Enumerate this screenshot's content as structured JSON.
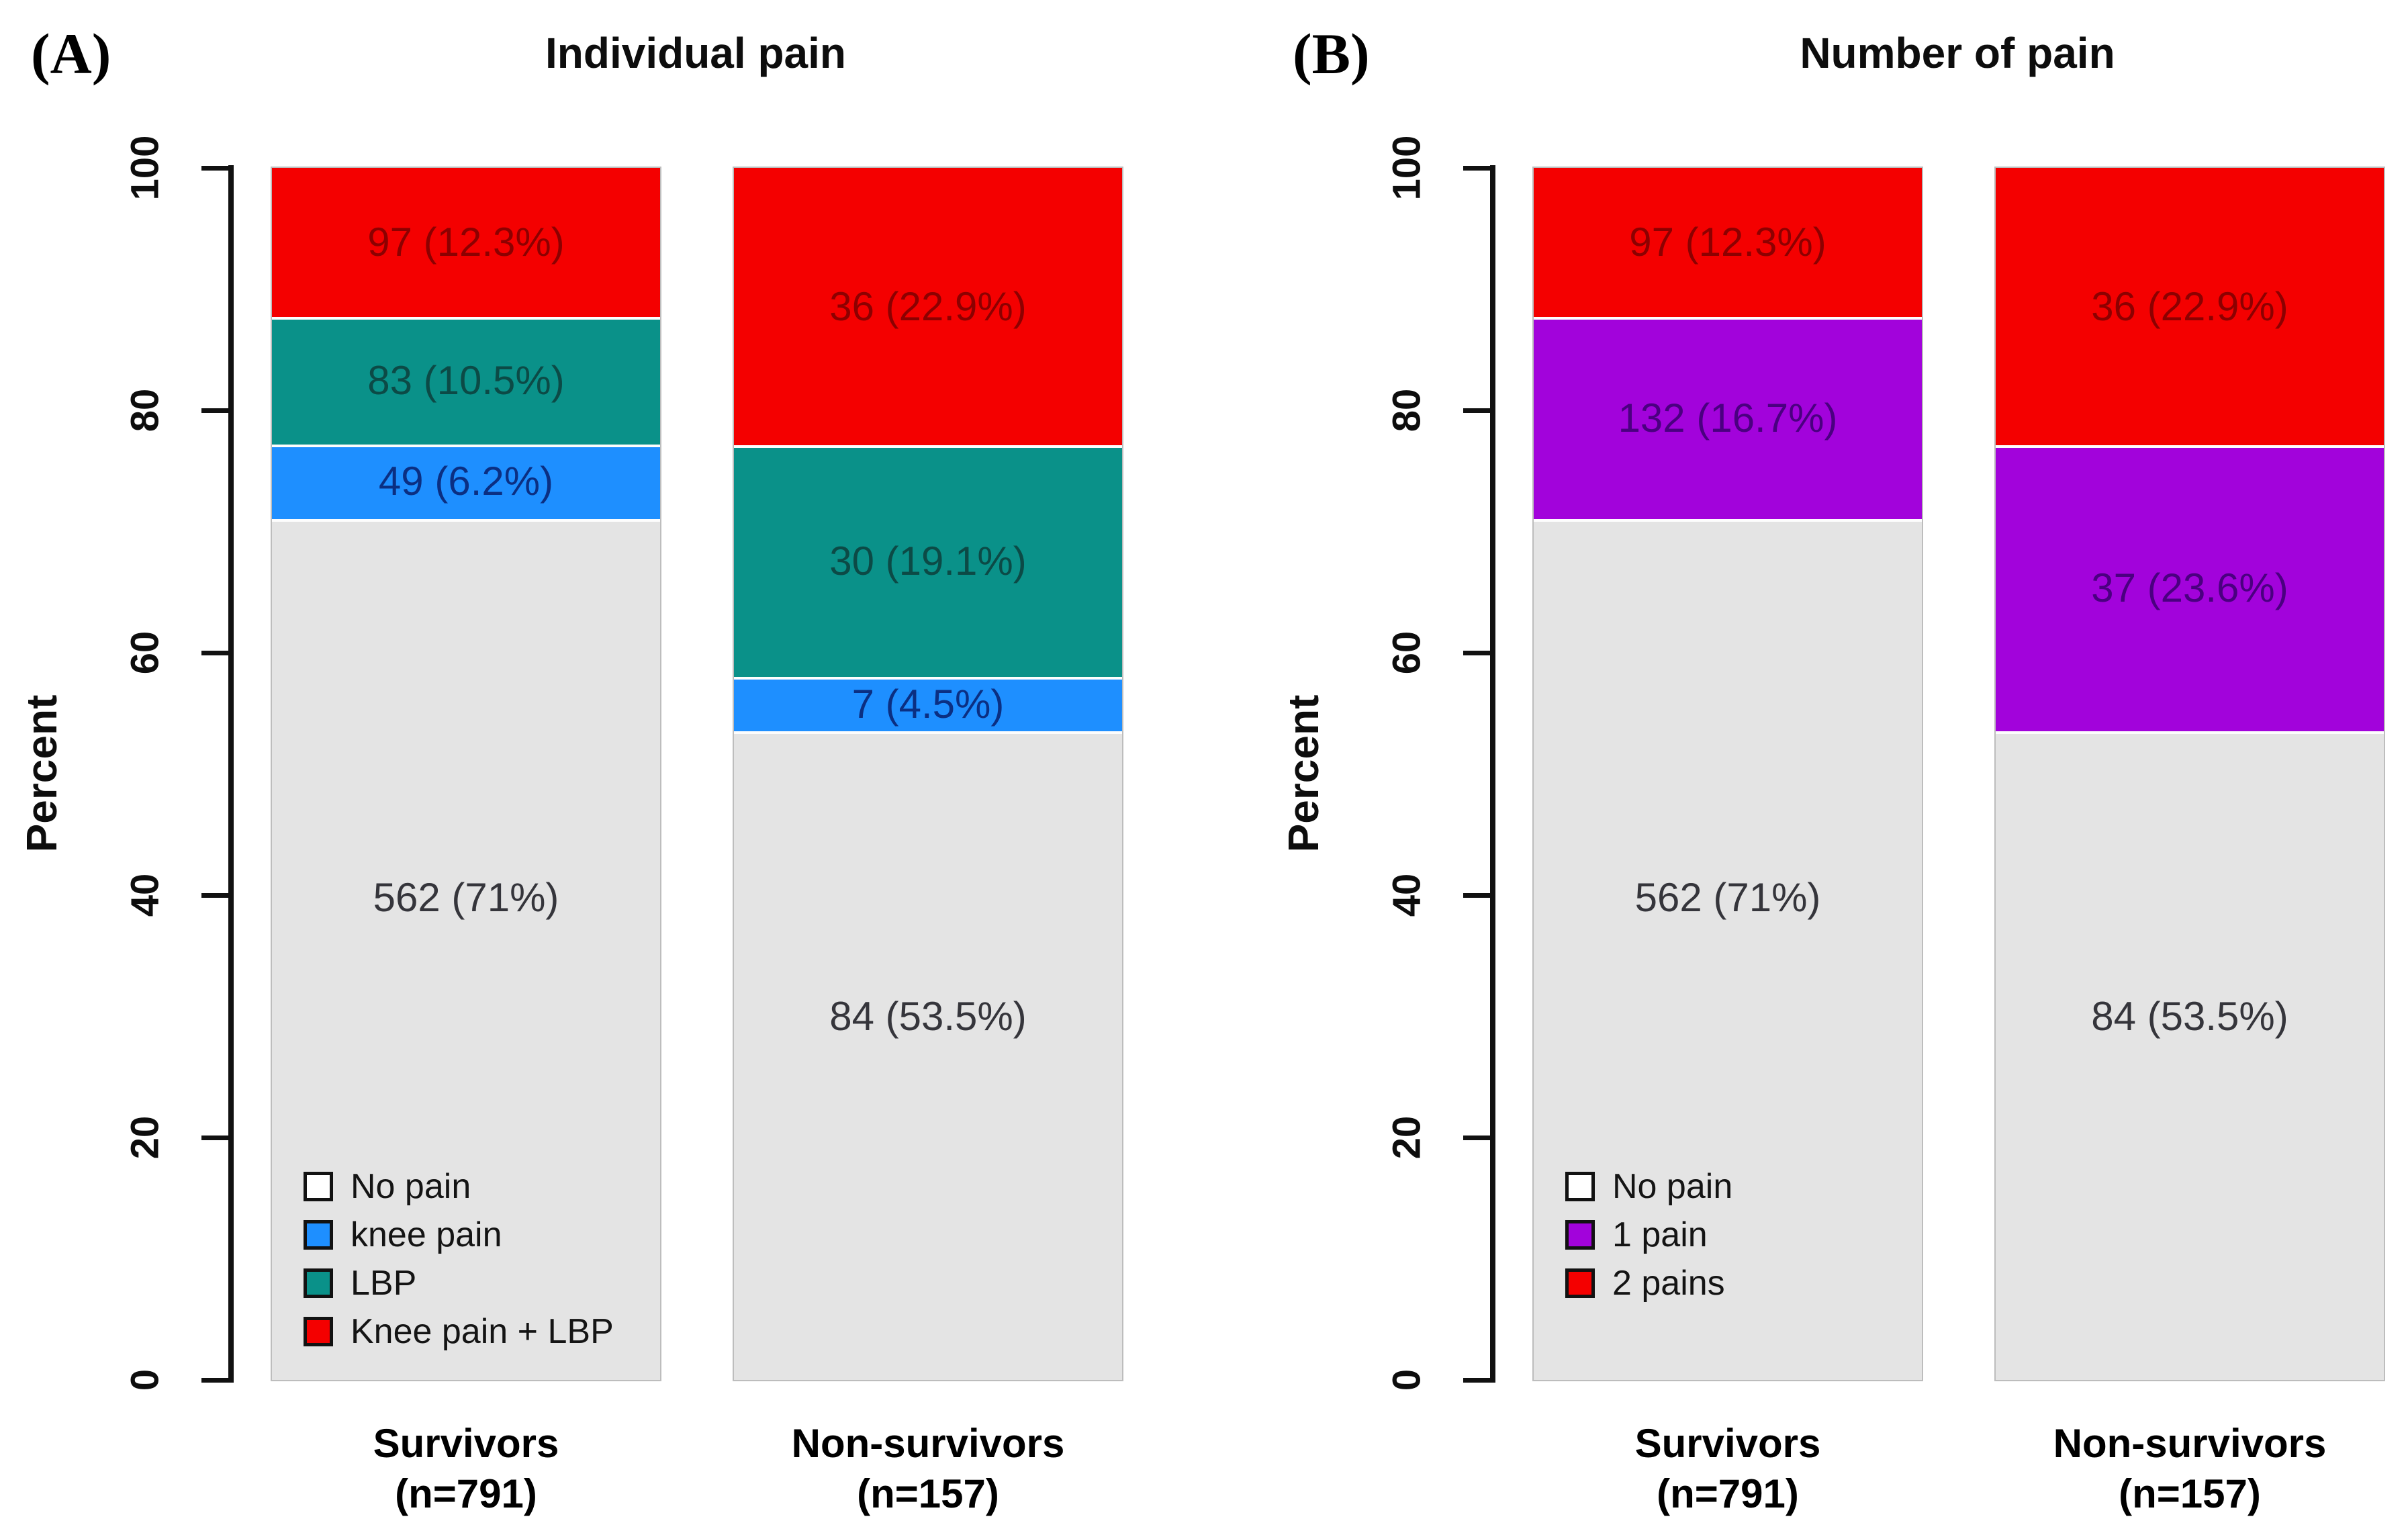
{
  "chart_data": [
    {
      "type": "bar",
      "stacked": true,
      "tag": "(A)",
      "title": "Individual pain",
      "ylabel": "Percent",
      "ylim": [
        0,
        100
      ],
      "yticks": [
        0,
        20,
        40,
        60,
        80,
        100
      ],
      "grid": false,
      "legend_position": "inside-bottom-left-of-first-bar",
      "legend": [
        {
          "label": "No pain",
          "color": "#FFFFFF"
        },
        {
          "label": "knee pain",
          "color": "#1E8FFF"
        },
        {
          "label": "LBP",
          "color": "#0A9189"
        },
        {
          "label": "Knee pain + LBP",
          "color": "#F40000"
        }
      ],
      "bars": [
        {
          "category": "Survivors",
          "n_label": "(n=791)",
          "segments_top_to_bottom": [
            {
              "group": "Knee pain + LBP",
              "count": 97,
              "pct": 12.3,
              "label": "97 (12.3%)",
              "color": "#F40000",
              "label_color": "#8C0000"
            },
            {
              "group": "LBP",
              "count": 83,
              "pct": 10.5,
              "label": "83 (10.5%)",
              "color": "#0A9189",
              "label_color": "#0C4A46"
            },
            {
              "group": "knee pain",
              "count": 49,
              "pct": 6.2,
              "label": "49 (6.2%)",
              "color": "#1E8FFF",
              "label_color": "#0B2F82"
            },
            {
              "group": "No pain",
              "count": 562,
              "pct": 71,
              "label": "562 (71%)",
              "color": "#E4E4E4",
              "label_color": "#35353B"
            }
          ]
        },
        {
          "category": "Non-survivors",
          "n_label": "(n=157)",
          "segments_top_to_bottom": [
            {
              "group": "Knee pain + LBP",
              "count": 36,
              "pct": 22.9,
              "label": "36 (22.9%)",
              "color": "#F40000",
              "label_color": "#8C0000"
            },
            {
              "group": "LBP",
              "count": 30,
              "pct": 19.1,
              "label": "30 (19.1%)",
              "color": "#0A9189",
              "label_color": "#0C4A46"
            },
            {
              "group": "knee pain",
              "count": 7,
              "pct": 4.5,
              "label": "7 (4.5%)",
              "color": "#1E8FFF",
              "label_color": "#0B2F82"
            },
            {
              "group": "No pain",
              "count": 84,
              "pct": 53.5,
              "label": "84 (53.5%)",
              "color": "#E4E4E4",
              "label_color": "#35353B"
            }
          ]
        }
      ]
    },
    {
      "type": "bar",
      "stacked": true,
      "tag": "(B)",
      "title": "Number of pain",
      "ylabel": "Percent",
      "ylim": [
        0,
        100
      ],
      "yticks": [
        0,
        20,
        40,
        60,
        80,
        100
      ],
      "grid": false,
      "legend_position": "inside-bottom-left-of-first-bar",
      "legend": [
        {
          "label": "No pain",
          "color": "#FFFFFF"
        },
        {
          "label": "1 pain",
          "color": "#A203DB"
        },
        {
          "label": "2 pains",
          "color": "#F40000"
        }
      ],
      "bars": [
        {
          "category": "Survivors",
          "n_label": "(n=791)",
          "segments_top_to_bottom": [
            {
              "group": "2 pains",
              "count": 97,
              "pct": 12.3,
              "label": "97 (12.3%)",
              "color": "#F40000",
              "label_color": "#8C0000"
            },
            {
              "group": "1 pain",
              "count": 132,
              "pct": 16.7,
              "label": "132 (16.7%)",
              "color": "#A203DB",
              "label_color": "#4A0080"
            },
            {
              "group": "No pain",
              "count": 562,
              "pct": 71,
              "label": "562 (71%)",
              "color": "#E4E4E4",
              "label_color": "#35353B"
            }
          ]
        },
        {
          "category": "Non-survivors",
          "n_label": "(n=157)",
          "segments_top_to_bottom": [
            {
              "group": "2 pains",
              "count": 36,
              "pct": 22.9,
              "label": "36 (22.9%)",
              "color": "#F40000",
              "label_color": "#8C0000"
            },
            {
              "group": "1 pain",
              "count": 37,
              "pct": 23.6,
              "label": "37 (23.6%)",
              "color": "#A203DB",
              "label_color": "#4A0080"
            },
            {
              "group": "No pain",
              "count": 84,
              "pct": 53.5,
              "label": "84 (53.5%)",
              "color": "#E4E4E4",
              "label_color": "#35353B"
            }
          ]
        }
      ]
    }
  ]
}
